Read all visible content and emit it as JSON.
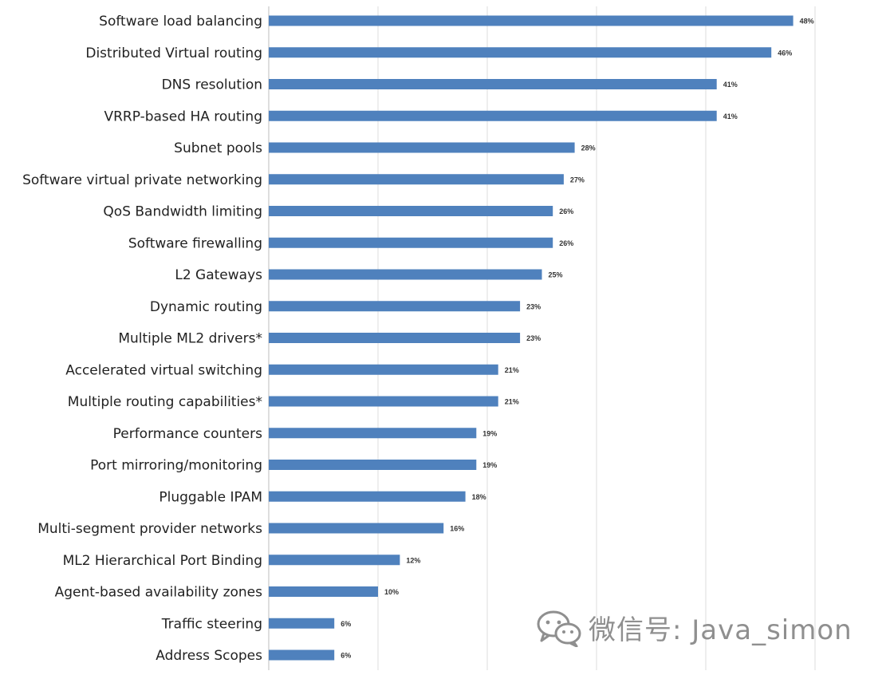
{
  "chart_data": {
    "type": "bar",
    "orientation": "horizontal",
    "categories": [
      "Software load balancing",
      "Distributed Virtual routing",
      "DNS resolution",
      "VRRP-based HA routing",
      "Subnet pools",
      "Software virtual private networking",
      "QoS Bandwidth limiting",
      "Software firewalling",
      "L2 Gateways",
      "Dynamic routing",
      "Multiple ML2 drivers*",
      "Accelerated virtual switching",
      "Multiple routing capabilities*",
      "Performance counters",
      "Port mirroring/monitoring",
      "Pluggable IPAM",
      "Multi-segment provider networks",
      "ML2 Hierarchical Port Binding",
      "Agent-based availability zones",
      "Traffic steering",
      "Address Scopes"
    ],
    "values": [
      48,
      46,
      41,
      41,
      28,
      27,
      26,
      26,
      25,
      23,
      23,
      21,
      21,
      19,
      19,
      18,
      16,
      12,
      10,
      6,
      6
    ],
    "data_labels": [
      "48%",
      "46%",
      "41%",
      "41%",
      "28%",
      "27%",
      "26%",
      "26%",
      "25%",
      "23%",
      "23%",
      "21%",
      "21%",
      "19%",
      "19%",
      "18%",
      "16%",
      "12%",
      "10%",
      "6%",
      "6%"
    ],
    "title": "",
    "xlabel": "",
    "ylabel": "",
    "xlim": [
      0,
      50
    ],
    "grid": true,
    "bar_color": "#4f81bd",
    "legend": "none"
  },
  "watermark": {
    "text": "微信号: Java_simon",
    "icon": "wechat-icon"
  }
}
